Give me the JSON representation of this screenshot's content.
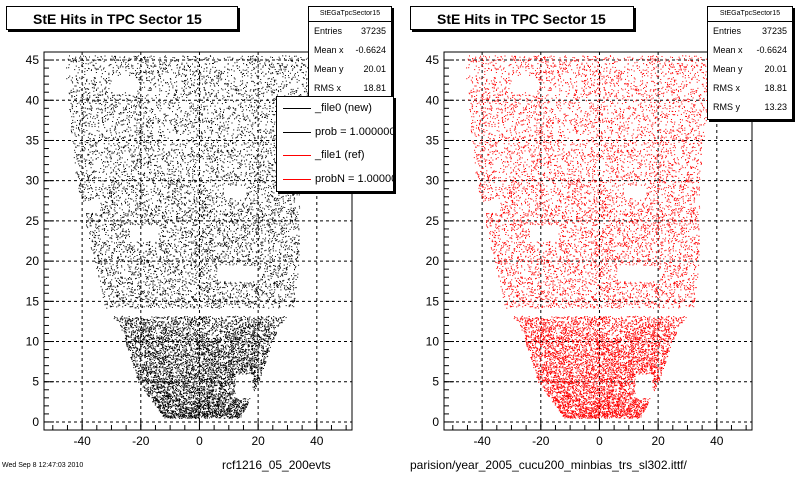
{
  "chart_data": [
    {
      "type": "scatter",
      "title": "StE Hits in TPC Sector 15",
      "color": "#000000",
      "xlim": [
        -53,
        52
      ],
      "ylim": [
        -1,
        46
      ],
      "xticks": [
        -40,
        -20,
        0,
        20,
        40
      ],
      "yticks": [
        0,
        5,
        10,
        15,
        20,
        25,
        30,
        35,
        40,
        45
      ],
      "grid": true,
      "stats": {
        "name": "StEGaTpcSector15",
        "rows": [
          {
            "label": "Entries",
            "value": "37235"
          },
          {
            "label": "Mean x",
            "value": "-0.6624"
          },
          {
            "label": "Mean y",
            "value": "20.01"
          },
          {
            "label": "RMS x",
            "value": "18.81"
          }
        ]
      },
      "legend": [
        {
          "label": "_file0 (new)",
          "color": "#000000"
        },
        {
          "label": "prob = 1.000000",
          "color": "#000000"
        },
        {
          "label": "_file1 (ref)",
          "color": "#ff0000"
        },
        {
          "label": "probN = 1.000000",
          "color": "#ff0000"
        }
      ],
      "footer": "rcf1216_05_200evts",
      "density_profile": {
        "rows": [
          {
            "y": 45,
            "xmin": -46,
            "xmax": 38
          },
          {
            "y": 40,
            "xmin": -45,
            "xmax": 37
          },
          {
            "y": 30,
            "xmin": -42,
            "xmax": 34
          },
          {
            "y": 20,
            "xmin": -36,
            "xmax": 34
          },
          {
            "y": 14,
            "xmin": -32,
            "xmax": 32
          },
          {
            "y": 12,
            "xmin": -27,
            "xmax": 27
          },
          {
            "y": 5,
            "xmin": -21,
            "xmax": 20
          },
          {
            "y": 0.5,
            "xmin": -12,
            "xmax": 14
          }
        ],
        "gap_y": [
          13.2,
          14.2
        ]
      }
    },
    {
      "type": "scatter",
      "title": "StE Hits in TPC Sector 15",
      "color": "#ff0000",
      "xlim": [
        -53,
        52
      ],
      "ylim": [
        -1,
        46
      ],
      "xticks": [
        -40,
        -20,
        0,
        20,
        40
      ],
      "yticks": [
        0,
        5,
        10,
        15,
        20,
        25,
        30,
        35,
        40,
        45
      ],
      "grid": true,
      "stats": {
        "name": "StEGaTpcSector15",
        "rows": [
          {
            "label": "Entries",
            "value": "37235"
          },
          {
            "label": "Mean x",
            "value": "-0.6624"
          },
          {
            "label": "Mean y",
            "value": "20.01"
          },
          {
            "label": "RMS x",
            "value": "18.81"
          },
          {
            "label": "RMS y",
            "value": "13.23"
          }
        ]
      },
      "footer": "parision/year_2005_cucu200_minbias_trs_sl302.ittf/"
    }
  ],
  "corner_note": "Wed Sep  8 12:47:03 2010"
}
